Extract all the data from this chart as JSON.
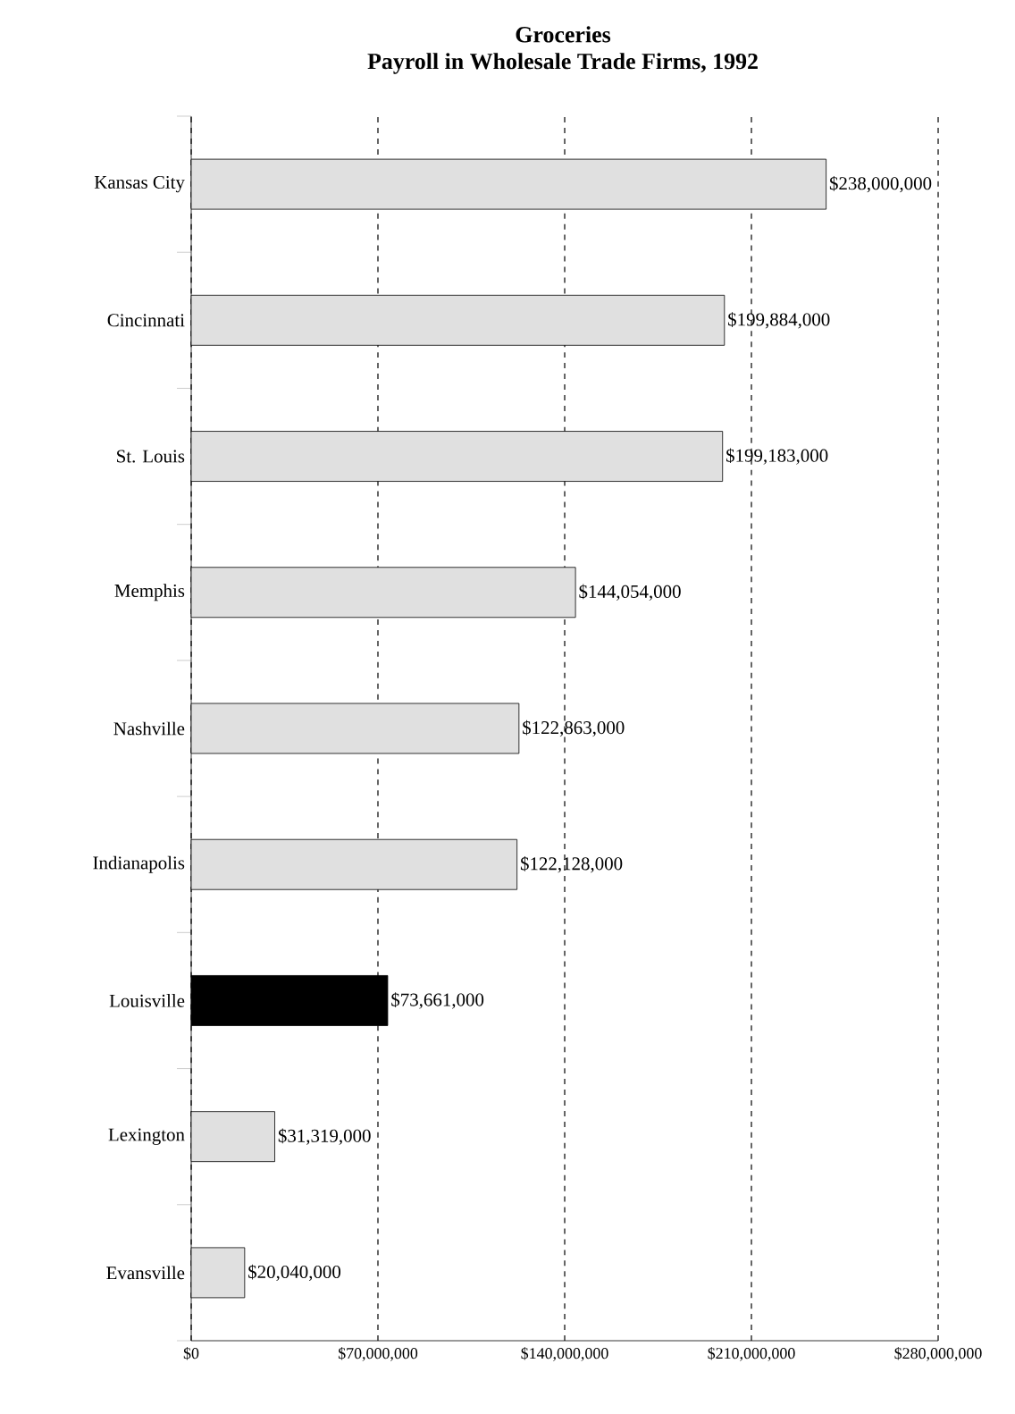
{
  "chart_data": {
    "type": "bar",
    "orientation": "horizontal",
    "title": "Groceries",
    "subtitle": "Payroll in Wholesale Trade Firms, 1992",
    "categories": [
      "Kansas City",
      "Cincinnati",
      "St. Louis",
      "Memphis",
      "Nashville",
      "Indianapolis",
      "Louisville",
      "Lexington",
      "Evansville"
    ],
    "values": [
      238000000,
      199884000,
      199183000,
      144054000,
      122863000,
      122128000,
      73661000,
      31319000,
      20040000
    ],
    "value_labels": [
      "$238,000,000",
      "$199,884,000",
      "$199,183,000",
      "$144,054,000",
      "$122,863,000",
      "$122,128,000",
      "$73,661,000",
      "$31,319,000",
      "$20,040,000"
    ],
    "colors": [
      "#e0e0e0",
      "#e0e0e0",
      "#e0e0e0",
      "#e0e0e0",
      "#e0e0e0",
      "#e0e0e0",
      "#000000",
      "#e0e0e0",
      "#e0e0e0"
    ],
    "xlim": [
      0,
      280000000
    ],
    "xticks": [
      {
        "value": 0,
        "label": "$0"
      },
      {
        "value": 70000000,
        "label": "$70,000,000"
      },
      {
        "value": 140000000,
        "label": "$140,000,000"
      },
      {
        "value": 210000000,
        "label": "$210,000,000"
      },
      {
        "value": 280000000,
        "label": "$280,000,000"
      }
    ],
    "grid": "x"
  }
}
